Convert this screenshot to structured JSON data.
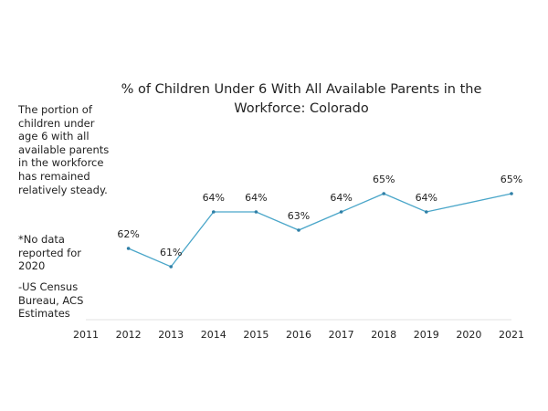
{
  "chart_data": {
    "type": "line",
    "title_line1": "% of Children Under 6 With All Available Parents in the",
    "title_line2": "Workforce: Colorado",
    "categories": [
      "2011",
      "2012",
      "2013",
      "2014",
      "2015",
      "2016",
      "2017",
      "2018",
      "2019",
      "2020",
      "2021"
    ],
    "series": [
      {
        "name": "% of Children Under 6 With All Available Parents in the Workforce",
        "values": [
          null,
          62,
          61,
          64,
          64,
          63,
          64,
          65,
          64,
          null,
          65
        ],
        "labels": [
          null,
          "62%",
          "61%",
          "64%",
          "64%",
          "63%",
          "64%",
          "65%",
          "64%",
          null,
          "65%"
        ]
      }
    ],
    "ylim": [
      55,
      70
    ],
    "xlabel": "",
    "ylabel": "",
    "grid": false,
    "legend": "none",
    "line_color": "#4aa6c9"
  },
  "notes": {
    "summary": "The portion of children under age 6 with all available parents in the workforce has remained relatively steady.",
    "no_data": "*No data reported for 2020",
    "source": "-US Census Bureau, ACS Estimates"
  }
}
